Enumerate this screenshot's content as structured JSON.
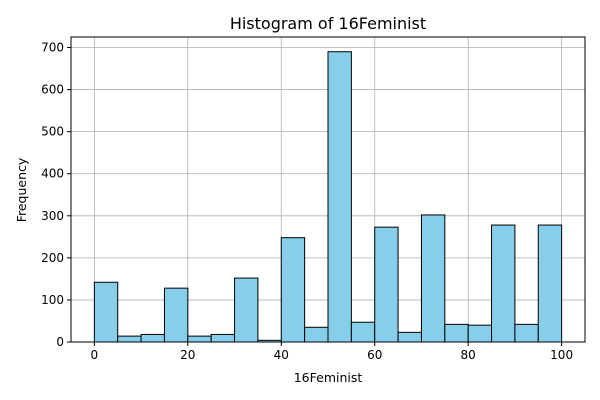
{
  "chart_data": {
    "type": "bar",
    "title": "Histogram of 16Feminist",
    "xlabel": "16Feminist",
    "ylabel": "Frequency",
    "bin_edges": [
      0,
      5,
      10,
      15,
      20,
      25,
      30,
      35,
      40,
      45,
      50,
      55,
      60,
      65,
      70,
      75,
      80,
      85,
      90,
      95,
      100
    ],
    "values": [
      142,
      14,
      18,
      128,
      14,
      18,
      152,
      4,
      248,
      35,
      690,
      47,
      273,
      23,
      302,
      42,
      40,
      278,
      42,
      278
    ],
    "xlim": [
      -5,
      105
    ],
    "ylim": [
      0,
      725
    ],
    "xticks": [
      0,
      20,
      40,
      60,
      80,
      100
    ],
    "yticks": [
      0,
      100,
      200,
      300,
      400,
      500,
      600,
      700
    ],
    "grid": true,
    "bar_color": "#87ceeb",
    "edge_color": "#000000",
    "grid_color": "#b0b0b0"
  }
}
